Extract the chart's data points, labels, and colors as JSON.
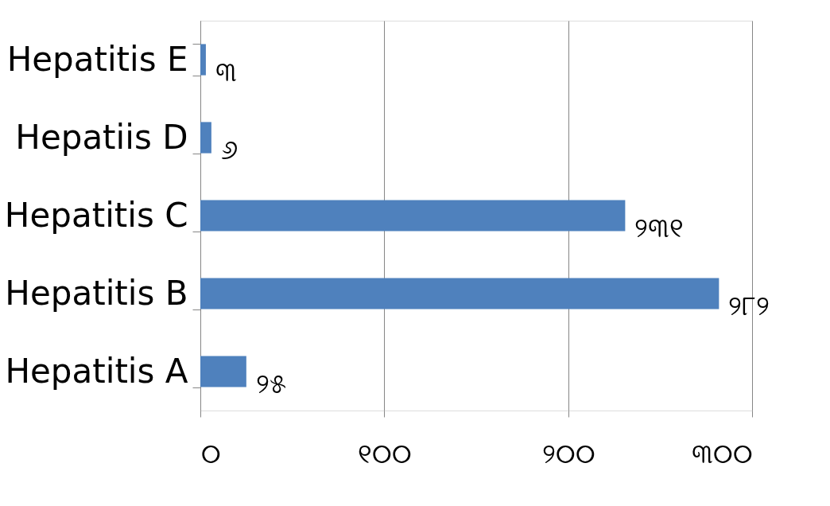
{
  "chart_data": {
    "type": "bar",
    "orientation": "horizontal",
    "categories": [
      "Hepatitis E",
      "Hepatiis D",
      "Hepatitis C",
      "Hepatitis B",
      "Hepatitis A"
    ],
    "values": [
      3,
      6,
      231,
      282,
      25
    ],
    "value_labels": [
      "୩",
      "୬",
      "୨୩୧",
      "୨୮୨",
      "୨୫"
    ],
    "color": "#4f81bd",
    "xlim": [
      0,
      300
    ],
    "xticks": [
      {
        "value": 0,
        "label": "୦"
      },
      {
        "value": 100,
        "label": "୧୦୦"
      },
      {
        "value": 200,
        "label": "୨୦୦"
      },
      {
        "value": 300,
        "label": "୩୦୦"
      }
    ],
    "grid": "x"
  }
}
